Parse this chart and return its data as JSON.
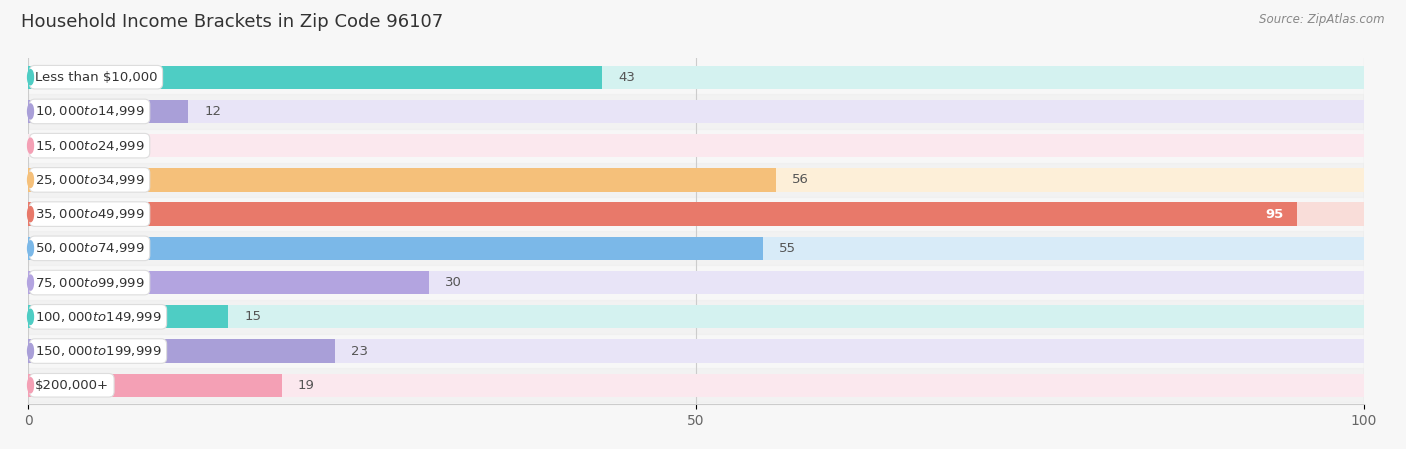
{
  "title": "Household Income Brackets in Zip Code 96107",
  "source": "Source: ZipAtlas.com",
  "categories": [
    "Less than $10,000",
    "$10,000 to $14,999",
    "$15,000 to $24,999",
    "$25,000 to $34,999",
    "$35,000 to $49,999",
    "$50,000 to $74,999",
    "$75,000 to $99,999",
    "$100,000 to $149,999",
    "$150,000 to $199,999",
    "$200,000+"
  ],
  "values": [
    43,
    12,
    0,
    56,
    95,
    55,
    30,
    15,
    23,
    19
  ],
  "bar_colors": [
    "#4ECDC4",
    "#A99FD8",
    "#F4A0B5",
    "#F5C07A",
    "#E8796A",
    "#7BB8E8",
    "#B3A4E0",
    "#4ECDC4",
    "#A99FD8",
    "#F4A0B5"
  ],
  "bar_bg_colors": [
    "#D4F2F0",
    "#E8E4F7",
    "#FBE8EE",
    "#FDEFD8",
    "#F9DDD9",
    "#D8EBF8",
    "#E8E4F7",
    "#D4F2F0",
    "#E8E4F7",
    "#FBE8EE"
  ],
  "xlim": [
    0,
    100
  ],
  "xticks": [
    0,
    50,
    100
  ],
  "background_color": "#f7f7f7",
  "title_fontsize": 13,
  "label_fontsize": 9.5,
  "value_fontsize": 9.5,
  "bar_height": 0.68
}
